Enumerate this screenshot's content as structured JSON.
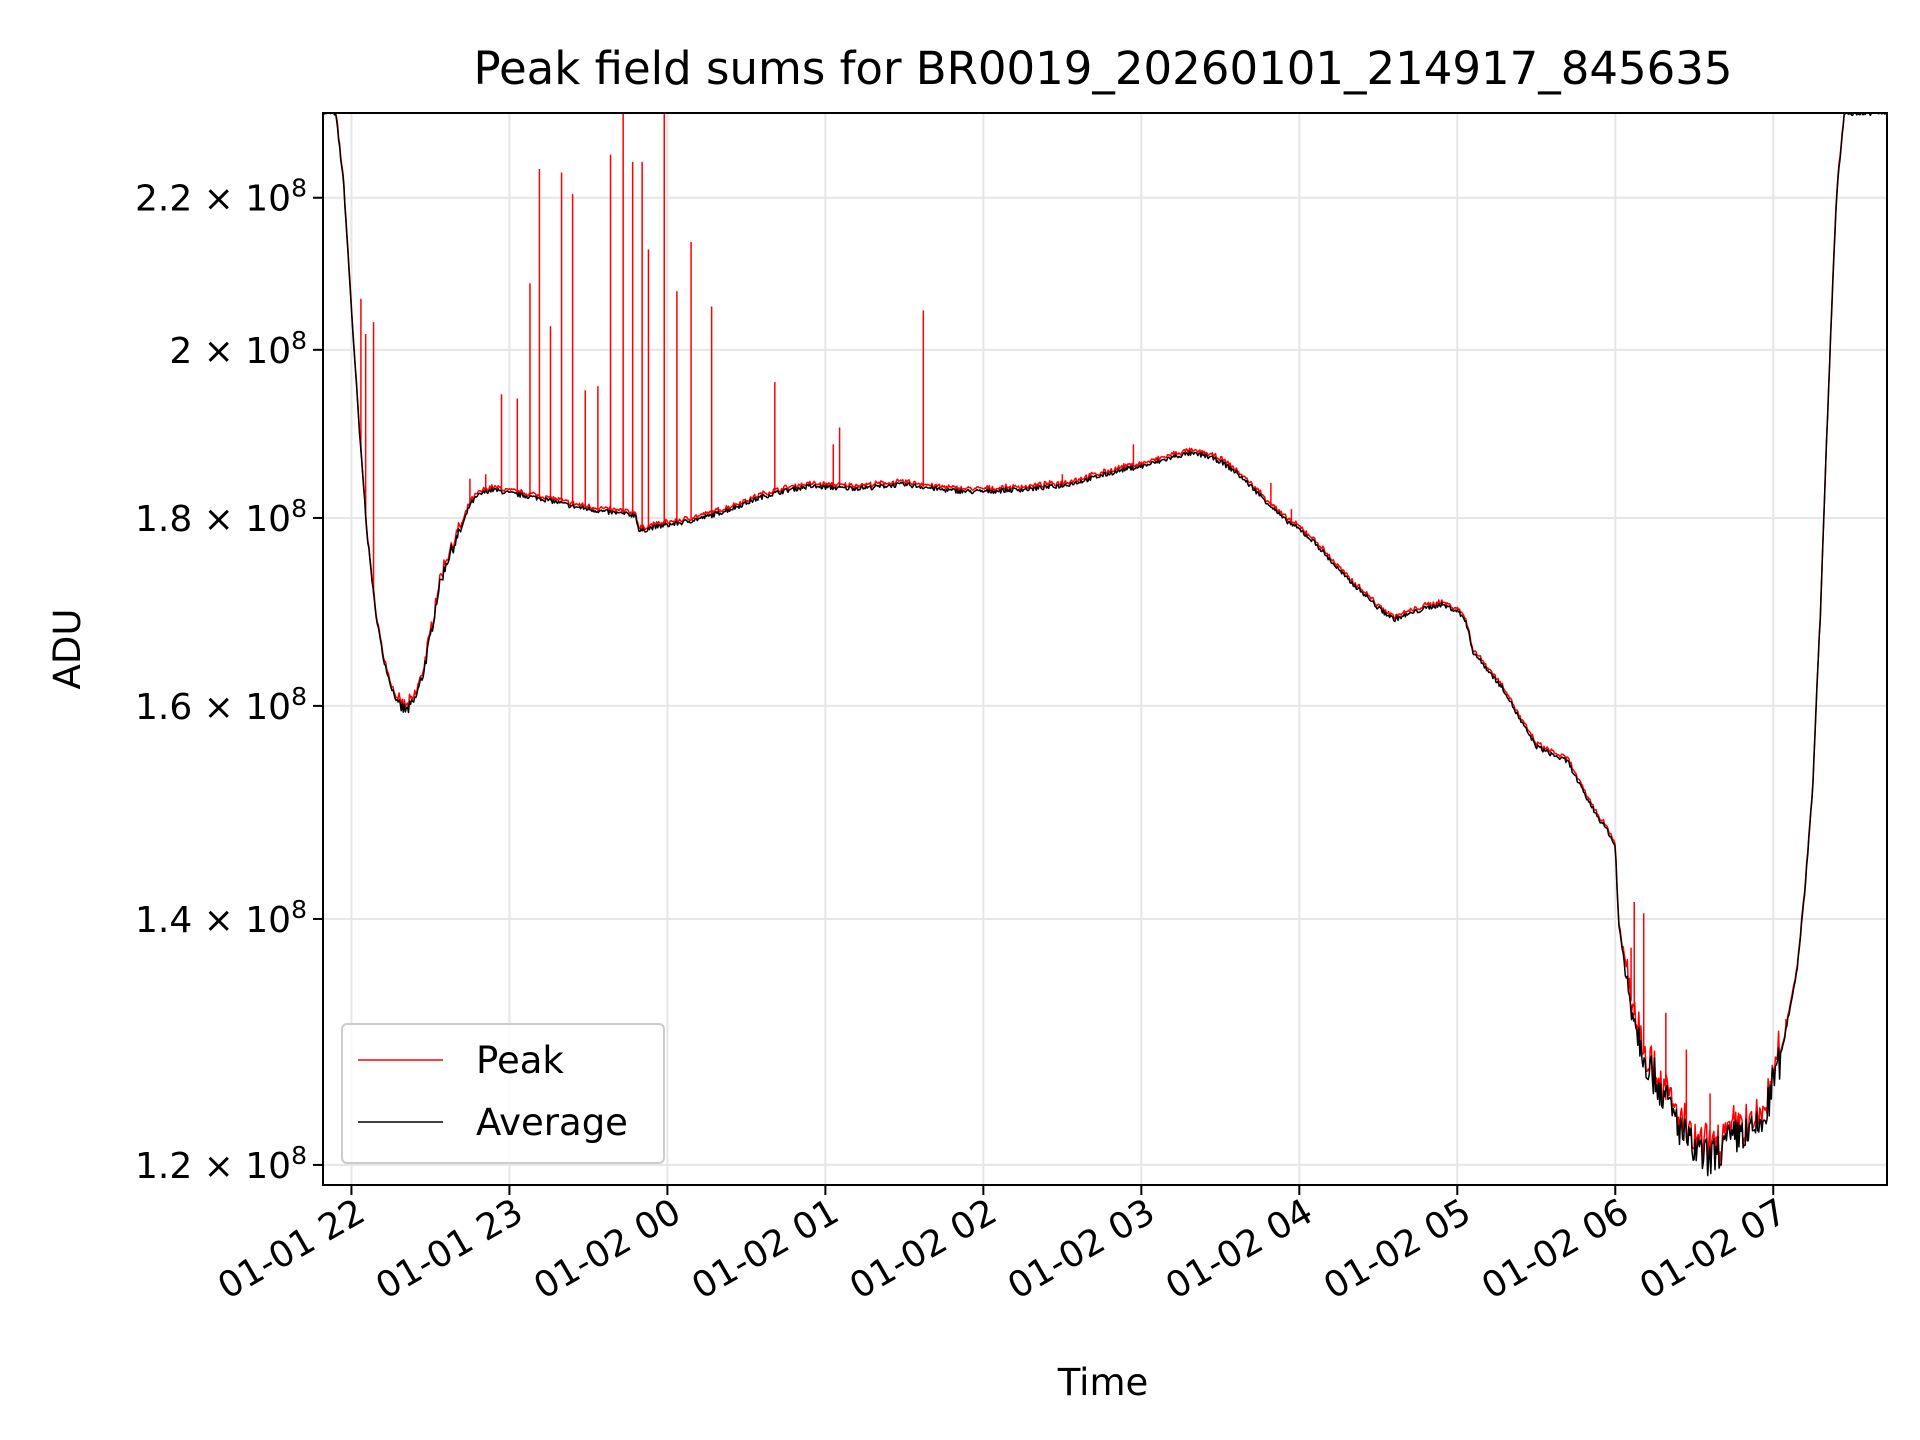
{
  "chart_data": {
    "type": "line",
    "title": "Peak field sums for BR0019_20260101_214917_845635",
    "xlabel": "Time",
    "ylabel": "ADU",
    "y_scale": "log",
    "ylim": [
      118500000,
      232000000
    ],
    "xlim_hours": [
      21.82,
      31.72
    ],
    "grid": true,
    "legend_position": "lower-left",
    "x_ticks": [
      {
        "label": "01-01 22",
        "hour": 22
      },
      {
        "label": "01-01 23",
        "hour": 23
      },
      {
        "label": "01-02 00",
        "hour": 24
      },
      {
        "label": "01-02 01",
        "hour": 25
      },
      {
        "label": "01-02 02",
        "hour": 26
      },
      {
        "label": "01-02 03",
        "hour": 27
      },
      {
        "label": "01-02 04",
        "hour": 28
      },
      {
        "label": "01-02 05",
        "hour": 29
      },
      {
        "label": "01-02 06",
        "hour": 30
      },
      {
        "label": "01-02 07",
        "hour": 31
      }
    ],
    "y_ticks": [
      {
        "mantissa": "1.2",
        "exp": "8",
        "value": 120000000
      },
      {
        "mantissa": "1.4",
        "exp": "8",
        "value": 140000000
      },
      {
        "mantissa": "1.6",
        "exp": "8",
        "value": 160000000
      },
      {
        "mantissa": "1.8",
        "exp": "8",
        "value": 180000000
      },
      {
        "mantissa": "2",
        "exp": "8",
        "value": 200000000
      },
      {
        "mantissa": "2.2",
        "exp": "8",
        "value": 220000000
      }
    ],
    "series": [
      {
        "name": "Average",
        "color": "#000000",
        "x_hours": [
          21.82,
          21.9,
          21.95,
          22.0,
          22.05,
          22.1,
          22.15,
          22.2,
          22.25,
          22.3,
          22.35,
          22.4,
          22.45,
          22.5,
          22.55,
          22.6,
          22.65,
          22.7,
          22.75,
          22.8,
          22.85,
          22.9,
          22.95,
          23.0,
          23.1,
          23.2,
          23.3,
          23.4,
          23.5,
          23.6,
          23.7,
          23.8,
          23.82,
          23.85,
          23.9,
          24.0,
          24.1,
          24.2,
          24.3,
          24.4,
          24.5,
          24.6,
          24.7,
          24.8,
          24.9,
          25.0,
          25.1,
          25.2,
          25.3,
          25.4,
          25.5,
          25.6,
          25.7,
          25.8,
          25.9,
          26.0,
          26.1,
          26.2,
          26.3,
          26.4,
          26.5,
          26.6,
          26.7,
          26.8,
          26.9,
          27.0,
          27.1,
          27.2,
          27.3,
          27.4,
          27.5,
          27.6,
          27.7,
          27.8,
          27.9,
          28.0,
          28.1,
          28.2,
          28.3,
          28.4,
          28.5,
          28.6,
          28.7,
          28.8,
          28.9,
          29.0,
          29.05,
          29.1,
          29.2,
          29.3,
          29.4,
          29.5,
          29.6,
          29.7,
          29.8,
          29.9,
          29.95,
          30.0,
          30.02,
          30.05,
          30.1,
          30.15,
          30.2,
          30.3,
          30.4,
          30.5,
          30.6,
          30.7,
          30.8,
          30.85,
          30.9,
          30.95,
          31.0,
          31.05,
          31.1,
          31.15,
          31.2,
          31.25,
          31.3,
          31.35,
          31.4,
          31.45,
          31.5,
          31.6,
          31.72
        ],
        "values": [
          232000000,
          232000000,
          222000000,
          205000000,
          190000000,
          178000000,
          170000000,
          165000000,
          162000000,
          160000000,
          159500000,
          160500000,
          163000000,
          167000000,
          172000000,
          175000000,
          177000000,
          179000000,
          181500000,
          182500000,
          183000000,
          183200000,
          183000000,
          182800000,
          182500000,
          182200000,
          181800000,
          181300000,
          181000000,
          180700000,
          180500000,
          180300000,
          178500000,
          178600000,
          178900000,
          179200000,
          179500000,
          179900000,
          180400000,
          181000000,
          181700000,
          182400000,
          182900000,
          183300000,
          183600000,
          183500000,
          183400000,
          183400000,
          183500000,
          183700000,
          183800000,
          183600000,
          183300000,
          183100000,
          183000000,
          183000000,
          183100000,
          183200000,
          183300000,
          183500000,
          183700000,
          184100000,
          184600000,
          185100000,
          185600000,
          185900000,
          186400000,
          187000000,
          187400000,
          187200000,
          186500000,
          185200000,
          183500000,
          181700000,
          179900000,
          178700000,
          177200000,
          175200000,
          173300000,
          171800000,
          170100000,
          168900000,
          169500000,
          170100000,
          170500000,
          169800000,
          168900000,
          165500000,
          163500000,
          161500000,
          158500000,
          156000000,
          155200000,
          154500000,
          151500000,
          149000000,
          148000000,
          146500000,
          140000000,
          136500000,
          133000000,
          130000000,
          128000000,
          125500000,
          123000000,
          121000000,
          120500000,
          121500000,
          122500000,
          122200000,
          122800000,
          123500000,
          126500000,
          128500000,
          132000000,
          135500000,
          142500000,
          152000000,
          170000000,
          195000000,
          220000000,
          232000000,
          232000000,
          232000000,
          232000000
        ]
      },
      {
        "name": "Peak",
        "color": "#ff0000",
        "spikes": [
          {
            "hour": 22.06,
            "value": 206500000
          },
          {
            "hour": 22.09,
            "value": 202000000
          },
          {
            "hour": 22.14,
            "value": 203500000
          },
          {
            "hour": 22.75,
            "value": 184500000
          },
          {
            "hour": 22.85,
            "value": 185000000
          },
          {
            "hour": 22.95,
            "value": 194500000
          },
          {
            "hour": 23.05,
            "value": 194000000
          },
          {
            "hour": 23.13,
            "value": 208500000
          },
          {
            "hour": 23.19,
            "value": 224000000
          },
          {
            "hour": 23.26,
            "value": 203000000
          },
          {
            "hour": 23.33,
            "value": 223500000
          },
          {
            "hour": 23.4,
            "value": 220500000
          },
          {
            "hour": 23.48,
            "value": 195000000
          },
          {
            "hour": 23.56,
            "value": 195500000
          },
          {
            "hour": 23.64,
            "value": 226000000
          },
          {
            "hour": 23.72,
            "value": 232000000
          },
          {
            "hour": 23.78,
            "value": 225000000
          },
          {
            "hour": 23.84,
            "value": 225000000
          },
          {
            "hour": 23.88,
            "value": 213000000
          },
          {
            "hour": 23.98,
            "value": 232000000
          },
          {
            "hour": 24.06,
            "value": 207500000
          },
          {
            "hour": 24.15,
            "value": 214000000
          },
          {
            "hour": 24.28,
            "value": 205500000
          },
          {
            "hour": 24.68,
            "value": 196000000
          },
          {
            "hour": 25.05,
            "value": 188500000
          },
          {
            "hour": 25.09,
            "value": 190500000
          },
          {
            "hour": 25.62,
            "value": 205000000
          },
          {
            "hour": 26.5,
            "value": 185000000
          },
          {
            "hour": 26.95,
            "value": 188500000
          },
          {
            "hour": 27.82,
            "value": 184000000
          },
          {
            "hour": 27.95,
            "value": 181000000
          },
          {
            "hour": 30.1,
            "value": 137500000
          },
          {
            "hour": 30.12,
            "value": 141500000
          },
          {
            "hour": 30.18,
            "value": 140500000
          },
          {
            "hour": 30.32,
            "value": 132000000
          },
          {
            "hour": 30.45,
            "value": 129000000
          },
          {
            "hour": 30.6,
            "value": 125500000
          },
          {
            "hour": 30.78,
            "value": 124000000
          },
          {
            "hour": 31.08,
            "value": 131500000
          }
        ]
      }
    ]
  },
  "legend": {
    "peak_label": "Peak",
    "average_label": "Average"
  }
}
